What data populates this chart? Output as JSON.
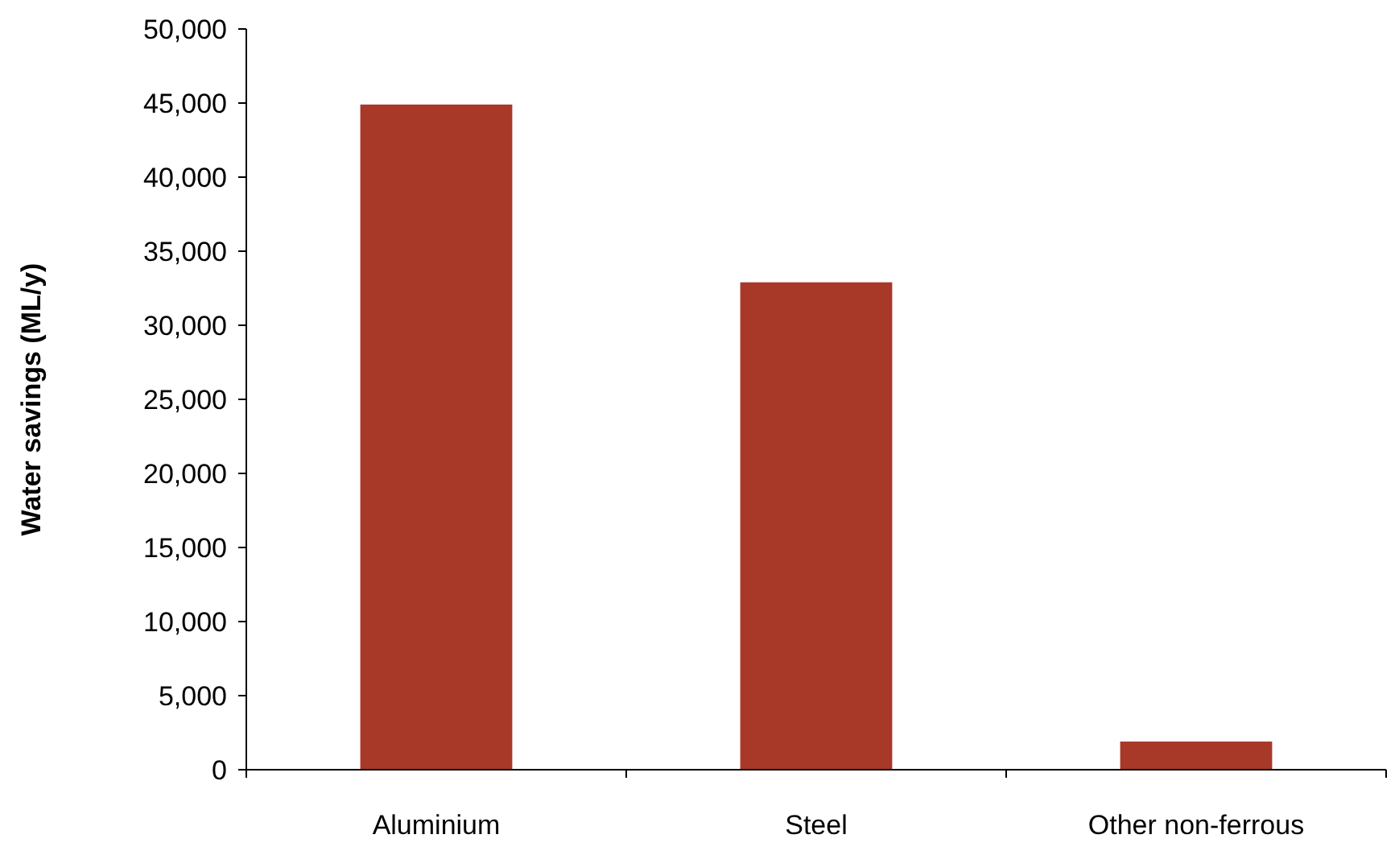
{
  "chart_data": {
    "type": "bar",
    "ylabel": "Water savings (ML/y)",
    "categories": [
      "Aluminium",
      "Steel",
      "Other non-ferrous"
    ],
    "values": [
      44900,
      32900,
      1900
    ],
    "color": "#a83828",
    "ylim": [
      0,
      50000
    ],
    "yticks": [
      {
        "value": 0,
        "label": "0"
      },
      {
        "value": 5000,
        "label": "5,000"
      },
      {
        "value": 10000,
        "label": "10,000"
      },
      {
        "value": 15000,
        "label": "15,000"
      },
      {
        "value": 20000,
        "label": "20,000"
      },
      {
        "value": 25000,
        "label": "25,000"
      },
      {
        "value": 30000,
        "label": "30,000"
      },
      {
        "value": 35000,
        "label": "35,000"
      },
      {
        "value": 40000,
        "label": "40,000"
      },
      {
        "value": 45000,
        "label": "45,000"
      },
      {
        "value": 50000,
        "label": "50,000"
      }
    ]
  }
}
